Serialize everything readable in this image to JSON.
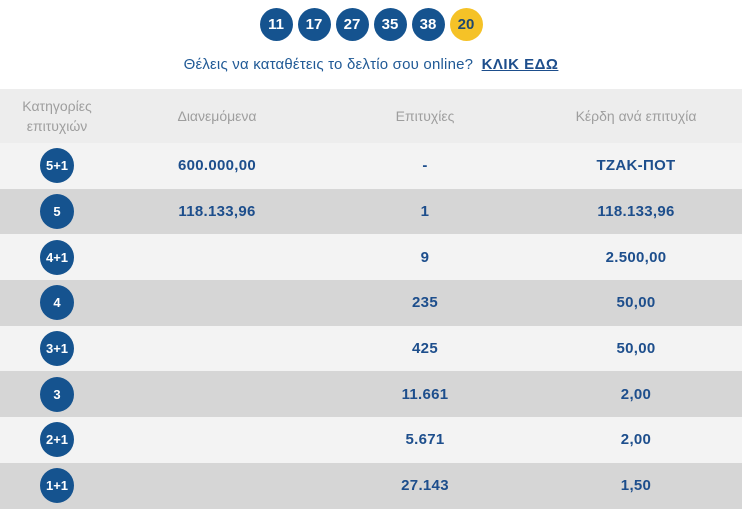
{
  "drawn_numbers": {
    "main": [
      "11",
      "17",
      "27",
      "35",
      "38"
    ],
    "joker": "20"
  },
  "deposit_prompt": {
    "text": "Θέλεις να καταθέτεις το δελτίο σου online?",
    "link_label": "ΚΛΙΚ ΕΔΩ"
  },
  "table": {
    "headers": {
      "category": "Κατηγορίες επιτυχιών",
      "distributed": "Διανεμόμενα",
      "winners": "Επιτυχίες",
      "prize_per_winner": "Κέρδη ανά επιτυχία"
    },
    "rows": [
      {
        "category": "5+1",
        "distributed": "600.000,00",
        "winners": "-",
        "prize": "ΤΖΑΚ-ΠΟΤ"
      },
      {
        "category": "5",
        "distributed": "118.133,96",
        "winners": "1",
        "prize": "118.133,96"
      },
      {
        "category": "4+1",
        "distributed": "",
        "winners": "9",
        "prize": "2.500,00"
      },
      {
        "category": "4",
        "distributed": "",
        "winners": "235",
        "prize": "50,00"
      },
      {
        "category": "3+1",
        "distributed": "",
        "winners": "425",
        "prize": "50,00"
      },
      {
        "category": "3",
        "distributed": "",
        "winners": "11.661",
        "prize": "2,00"
      },
      {
        "category": "2+1",
        "distributed": "",
        "winners": "5.671",
        "prize": "2,00"
      },
      {
        "category": "1+1",
        "distributed": "",
        "winners": "27.143",
        "prize": "1,50"
      }
    ]
  },
  "colors": {
    "navy": "#15538f",
    "text_navy": "#1d4e8c",
    "link_navy": "#215a96",
    "joker_yellow": "#f5c227",
    "header_bg": "#ededed",
    "row_light": "#f3f3f3",
    "row_dark": "#d6d6d6",
    "header_text": "#9e9e9e"
  }
}
